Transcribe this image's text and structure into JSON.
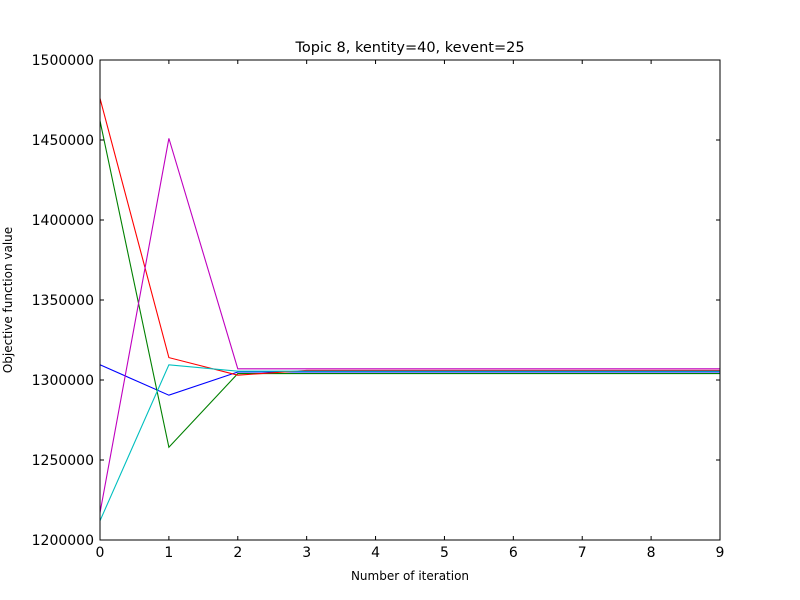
{
  "chart_data": {
    "type": "line",
    "title": "Topic 8, kentity=40, kevent=25",
    "xlabel": "Number of iteration",
    "ylabel": "Objective function value",
    "xlim": [
      0,
      9
    ],
    "ylim": [
      1200000,
      1500000
    ],
    "xticks": [
      0,
      1,
      2,
      3,
      4,
      5,
      6,
      7,
      8,
      9
    ],
    "yticks": [
      1200000,
      1250000,
      1300000,
      1350000,
      1400000,
      1450000,
      1500000
    ],
    "grid": false,
    "x": [
      0,
      1,
      2,
      3,
      4,
      5,
      6,
      7,
      8,
      9
    ],
    "series": [
      {
        "color": "#0000ff",
        "values": [
          1309500,
          1290500,
          1305000,
          1305000,
          1305000,
          1305000,
          1305000,
          1305000,
          1305000,
          1305000
        ]
      },
      {
        "color": "#008000",
        "values": [
          1462000,
          1258000,
          1304000,
          1304000,
          1304000,
          1304000,
          1304000,
          1304000,
          1304000,
          1304000
        ]
      },
      {
        "color": "#ff0000",
        "values": [
          1476000,
          1314000,
          1303000,
          1306000,
          1306000,
          1306000,
          1306000,
          1306000,
          1306000,
          1306000
        ]
      },
      {
        "color": "#00bfbf",
        "values": [
          1212000,
          1309500,
          1305500,
          1305500,
          1305500,
          1305500,
          1305500,
          1305500,
          1305500,
          1305500
        ]
      },
      {
        "color": "#bf00bf",
        "values": [
          1217000,
          1451000,
          1307000,
          1307000,
          1307000,
          1307000,
          1307000,
          1307000,
          1307000,
          1307000
        ]
      }
    ]
  }
}
